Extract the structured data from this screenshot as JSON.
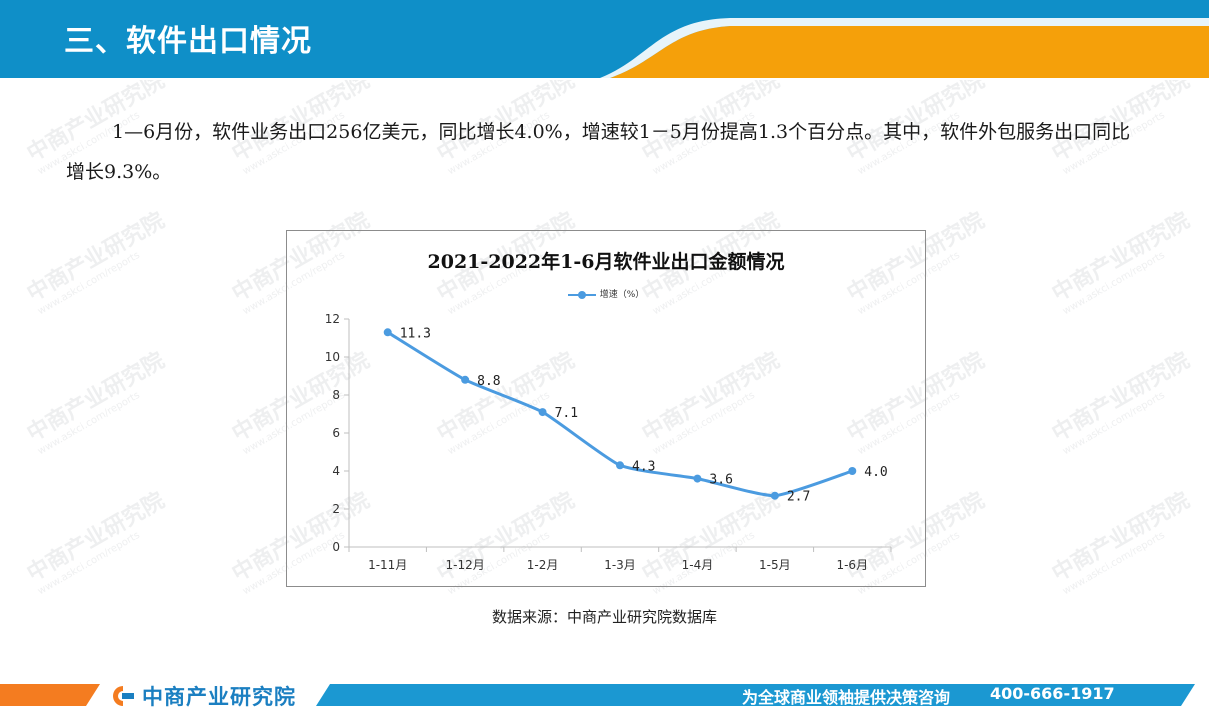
{
  "header": {
    "title": "三、软件出口情况",
    "colors": {
      "blue": "#0f8fc8",
      "orange": "#f5a00a"
    }
  },
  "paragraph": {
    "text": "1—6月份，软件业务出口256亿美元，同比增长4.0%，增速较1－5月份提高1.3个百分点。其中，软件外包服务出口同比增长9.3%。"
  },
  "watermark": {
    "main": "中商产业研究院",
    "sub": "www.askci.com/reports"
  },
  "chart_data": {
    "type": "line",
    "title": "2021-2022年1-6月软件业出口金额情况",
    "categories": [
      "1-11月",
      "1-12月",
      "1-2月",
      "1-3月",
      "1-4月",
      "1-5月",
      "1-6月"
    ],
    "series": [
      {
        "name": "增速（%）",
        "values": [
          11.3,
          8.8,
          7.1,
          4.3,
          3.6,
          2.7,
          4.0
        ],
        "color": "#4b9be0"
      }
    ],
    "ylim": [
      0,
      12
    ],
    "yticks": [
      0,
      2,
      4,
      6,
      8,
      10,
      12
    ],
    "grid": false,
    "legend": "top-center",
    "smooth": true
  },
  "source": "数据来源：中商产业研究院数据库",
  "footer": {
    "logo": "中商产业研究院",
    "slogan": "为全球商业领袖提供决策咨询",
    "phone": "400-666-1917",
    "colors": {
      "orange": "#f47c20",
      "blue": "#1b98d2"
    }
  }
}
